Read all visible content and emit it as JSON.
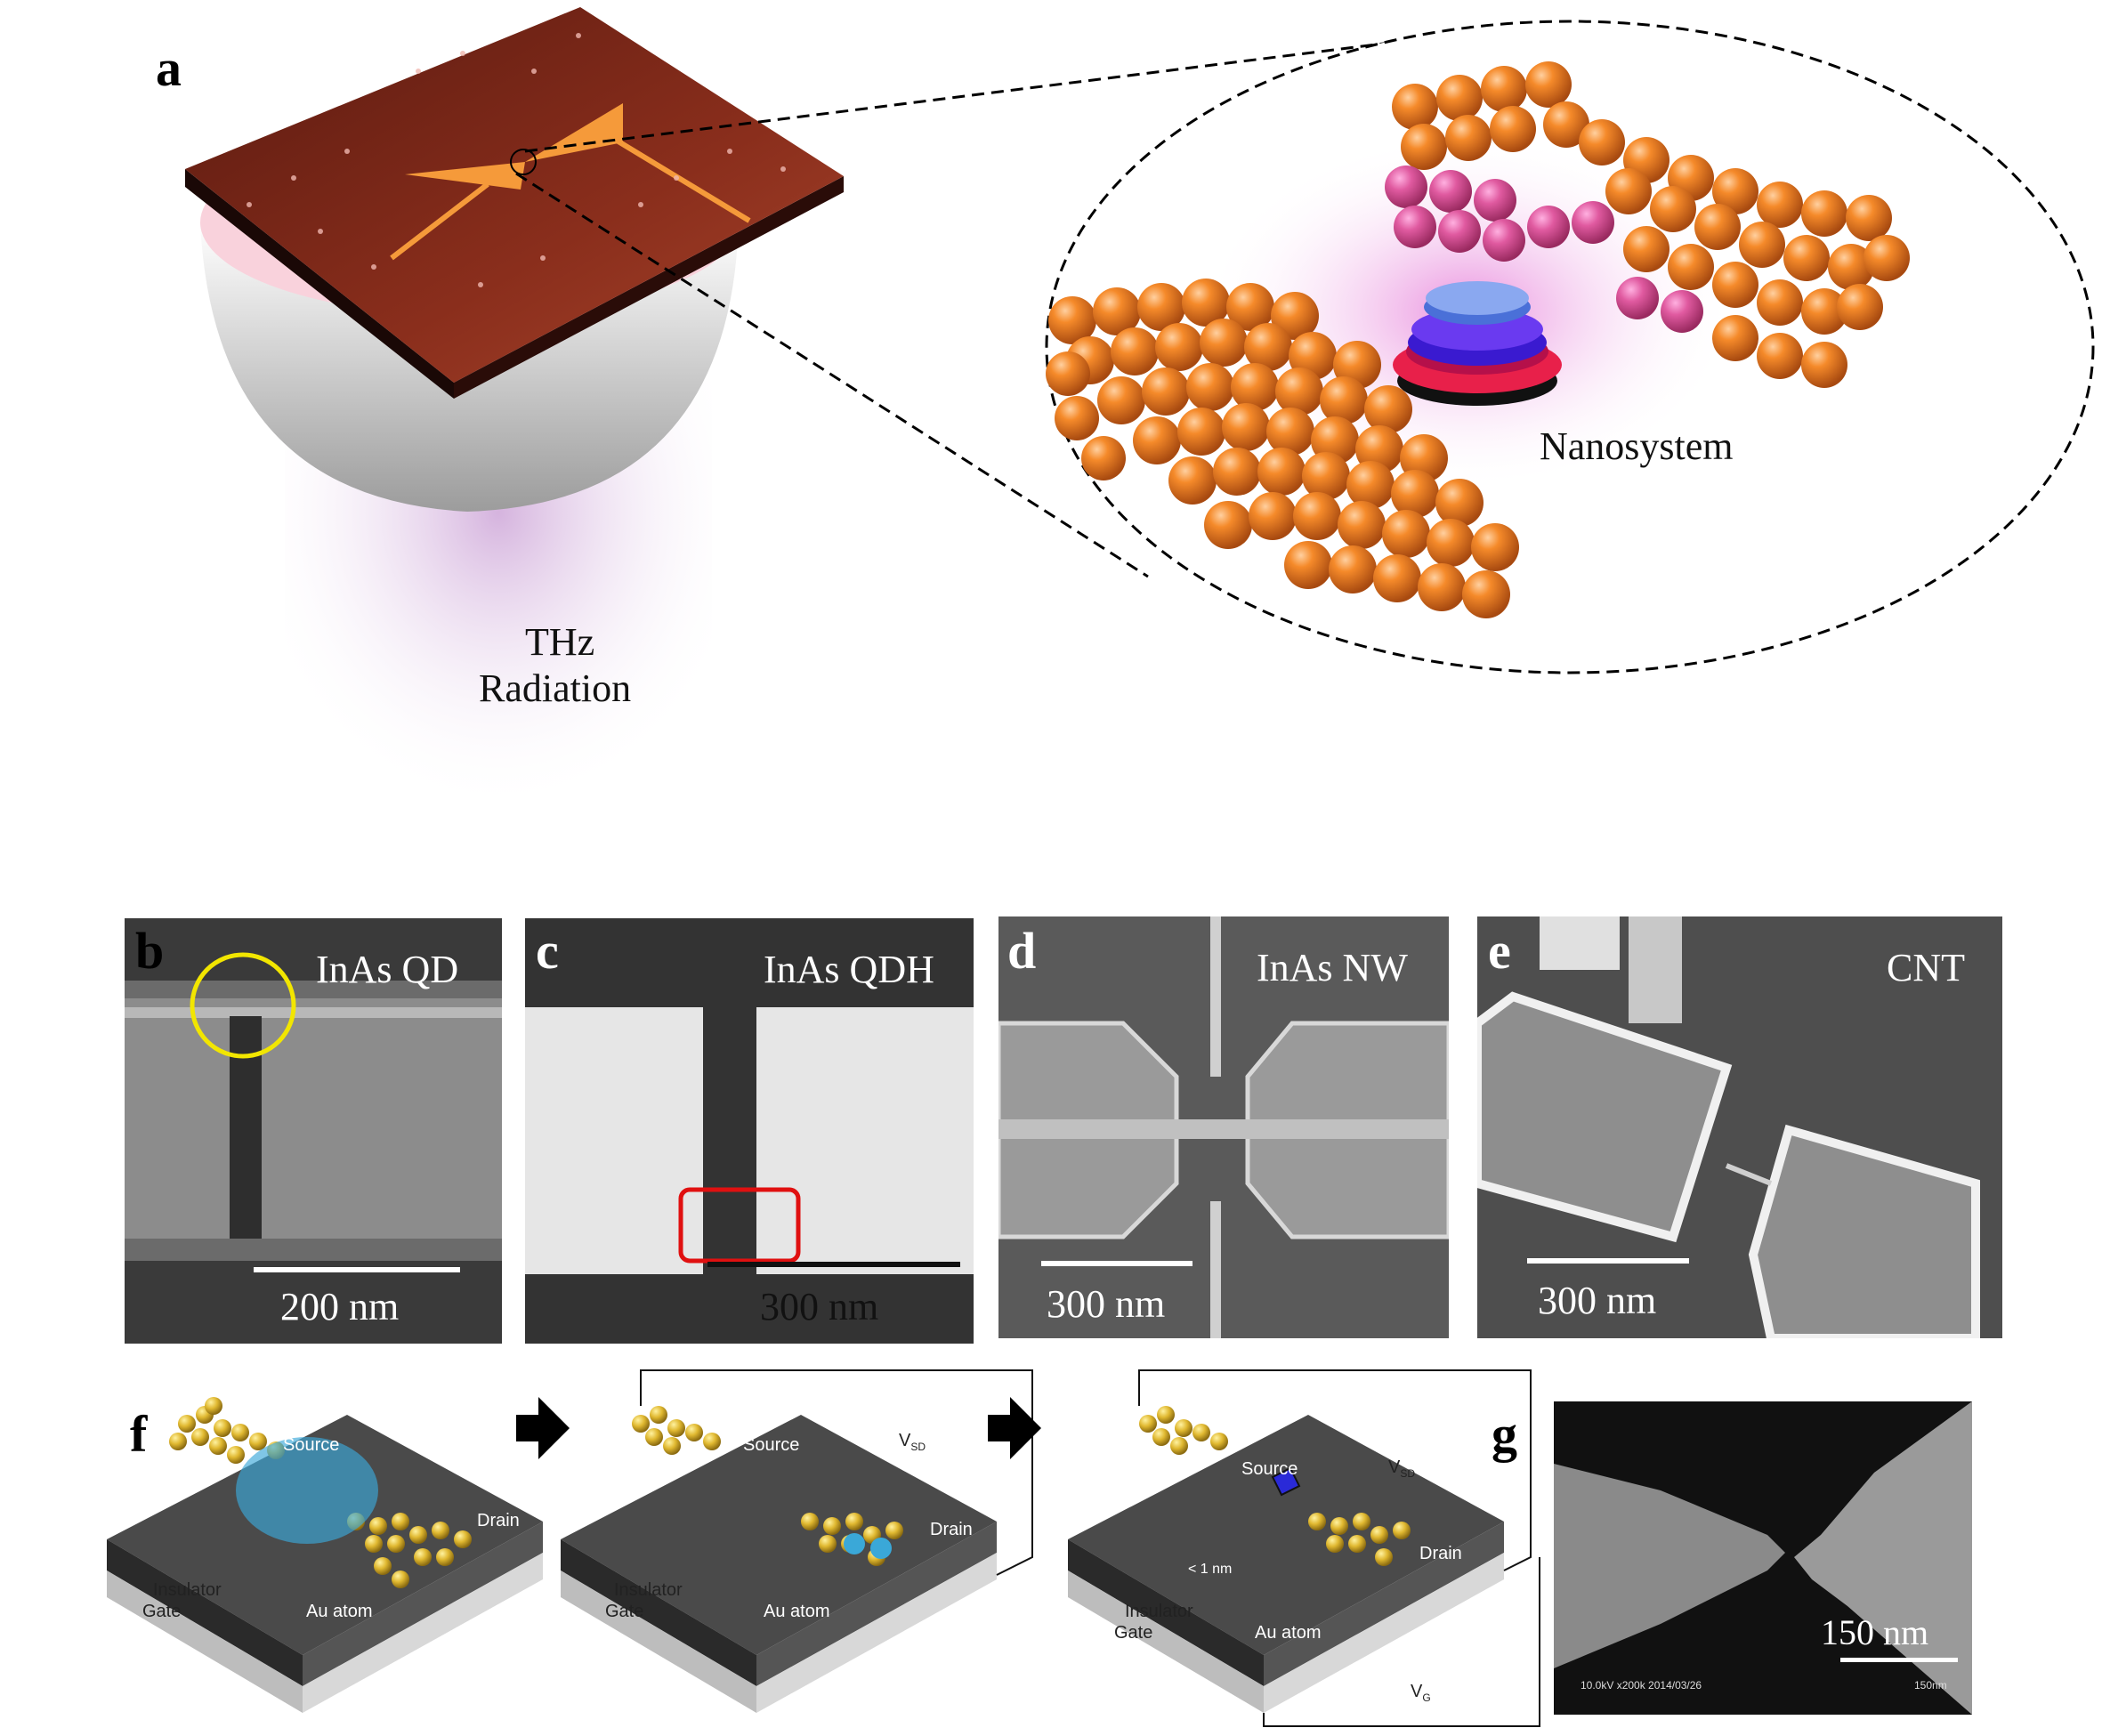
{
  "panels": {
    "a": {
      "label": "a",
      "thz_line1": "THz",
      "thz_line2": "Radiation",
      "nanosystem": "Nanosystem"
    },
    "b": {
      "label": "b",
      "title": "InAs QD",
      "scale": "200 nm"
    },
    "c": {
      "label": "c",
      "title": "InAs QDH",
      "scale": "300 nm"
    },
    "d": {
      "label": "d",
      "title": "InAs NW",
      "scale": "300 nm"
    },
    "e": {
      "label": "e",
      "title": "CNT",
      "scale": "300 nm"
    },
    "f": {
      "label": "f",
      "stage1": {
        "source": "Source",
        "drain": "Drain",
        "insulator": "Insulator",
        "gate": "Gate",
        "atom": "Au atom"
      },
      "stage2": {
        "source": "Source",
        "drain": "Drain",
        "insulator": "Insulator",
        "gate": "Gate",
        "atom": "Au atom",
        "vsd": "V",
        "vsd_sub": "SD"
      },
      "stage3": {
        "source": "Source",
        "drain": "Drain",
        "insulator": "Insulator",
        "gate": "Gate",
        "atom": "Au atom",
        "vsd": "V",
        "vsd_sub": "SD",
        "vg": "V",
        "vg_sub": "G",
        "gap": "< 1 nm"
      }
    },
    "g": {
      "label": "g",
      "scale": "150 nm",
      "info": "10.0kV x200k 2014/03/26",
      "small_scale": "150nm"
    }
  },
  "colors": {
    "gold_sphere": "#f08a2a",
    "substrate": "#7a2618",
    "antenna": "#f59a3a",
    "circle_highlight": "#f2e600",
    "box_highlight": "#e01010",
    "molecule_blue": "#2a2ad8",
    "au_atom": "#e0b830"
  }
}
